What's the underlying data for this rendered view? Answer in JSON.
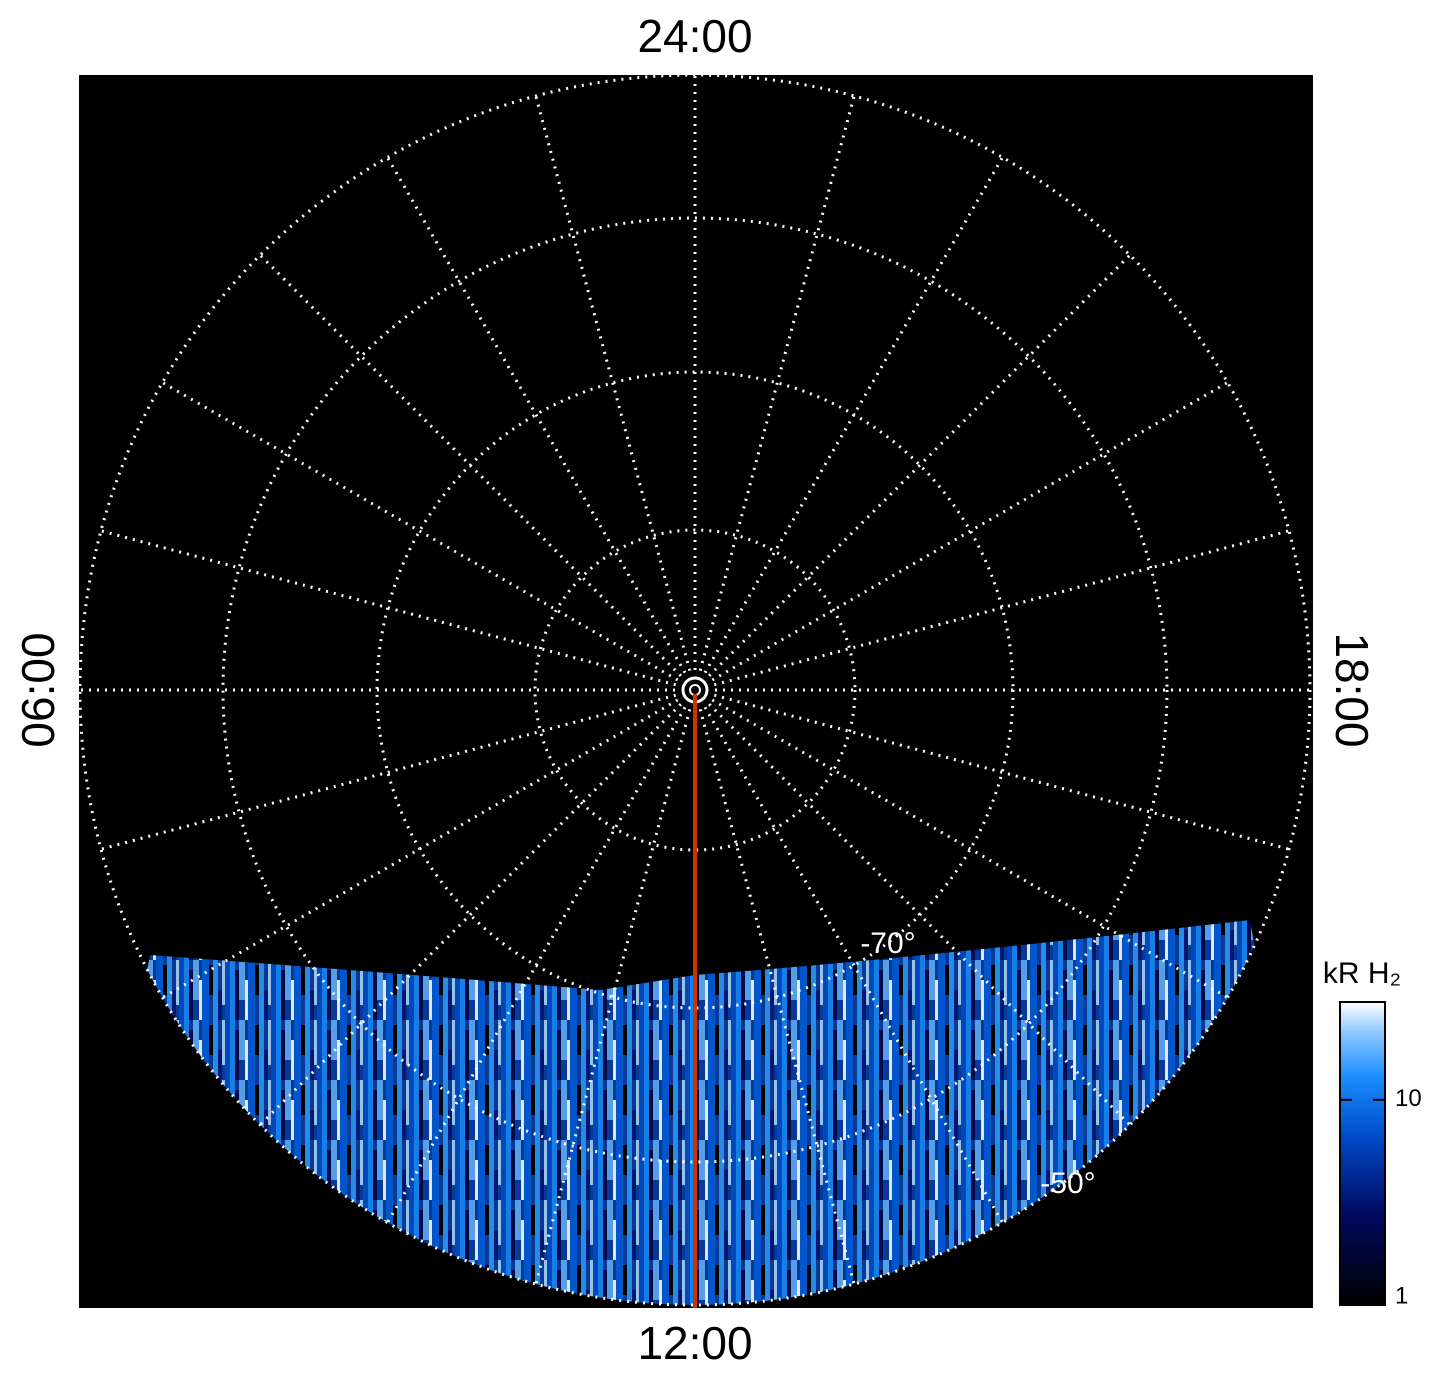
{
  "map": {
    "local_time_labels": {
      "top": "24:00",
      "bottom": "12:00",
      "left": "06:00",
      "right": "18:00"
    },
    "latitude_labels": [
      "-70°",
      "-50°"
    ],
    "colorbar": {
      "label": "kR H₂",
      "scale": "log",
      "range": [
        1,
        30
      ],
      "ticks": [
        1,
        10
      ]
    }
  }
}
